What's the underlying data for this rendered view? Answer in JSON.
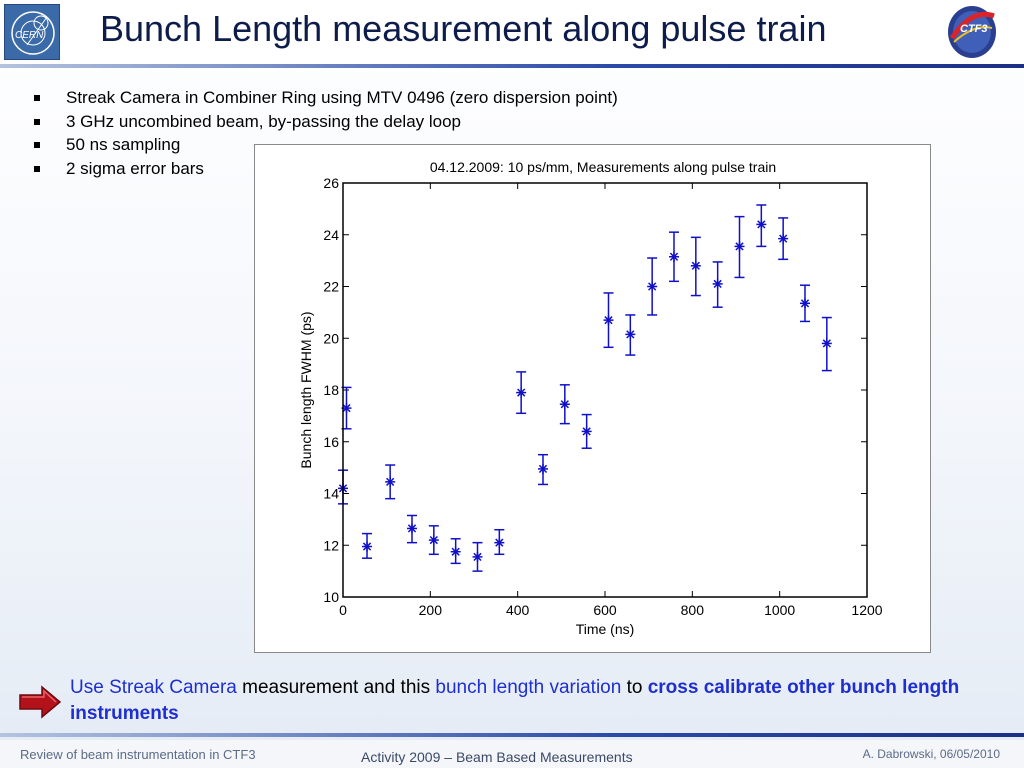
{
  "header": {
    "title": "Bunch Length measurement along pulse train",
    "left_logo_text": "CERN",
    "right_logo_text": "CTF3"
  },
  "bullets": [
    "Streak Camera in Combiner Ring using MTV 0496 (zero dispersion point)",
    "3 GHz uncombined beam, by-passing the delay loop",
    "50 ns sampling",
    "2 sigma error bars"
  ],
  "chart_data": {
    "type": "scatter",
    "title": "04.12.2009: 10 ps/mm, Measurements along pulse train",
    "xlabel": "Time (ns)",
    "ylabel": "Bunch length FWHM (ps)",
    "xlim": [
      0,
      1200
    ],
    "ylim": [
      10,
      26
    ],
    "xticks": [
      0,
      200,
      400,
      600,
      800,
      1000,
      1200
    ],
    "yticks": [
      10,
      12,
      14,
      16,
      18,
      20,
      22,
      24,
      26
    ],
    "grid": false,
    "marker": "asterisk",
    "color": "#1010c8",
    "error_bars": "2 sigma",
    "points": [
      {
        "x": 0,
        "y": 14.2,
        "low": 13.6,
        "high": 14.9
      },
      {
        "x": 8,
        "y": 17.3,
        "low": 16.5,
        "high": 18.1
      },
      {
        "x": 55,
        "y": 11.95,
        "low": 11.5,
        "high": 12.45
      },
      {
        "x": 108,
        "y": 14.45,
        "low": 13.8,
        "high": 15.1
      },
      {
        "x": 158,
        "y": 12.65,
        "low": 12.1,
        "high": 13.15
      },
      {
        "x": 208,
        "y": 12.2,
        "low": 11.65,
        "high": 12.75
      },
      {
        "x": 258,
        "y": 11.75,
        "low": 11.3,
        "high": 12.25
      },
      {
        "x": 308,
        "y": 11.55,
        "low": 11.0,
        "high": 12.1
      },
      {
        "x": 358,
        "y": 12.1,
        "low": 11.65,
        "high": 12.6
      },
      {
        "x": 408,
        "y": 17.9,
        "low": 17.1,
        "high": 18.7
      },
      {
        "x": 458,
        "y": 14.95,
        "low": 14.35,
        "high": 15.5
      },
      {
        "x": 508,
        "y": 17.45,
        "low": 16.7,
        "high": 18.2
      },
      {
        "x": 558,
        "y": 16.4,
        "low": 15.75,
        "high": 17.05
      },
      {
        "x": 608,
        "y": 20.7,
        "low": 19.65,
        "high": 21.75
      },
      {
        "x": 658,
        "y": 20.15,
        "low": 19.35,
        "high": 20.9
      },
      {
        "x": 708,
        "y": 22.0,
        "low": 20.9,
        "high": 23.1
      },
      {
        "x": 758,
        "y": 23.15,
        "low": 22.2,
        "high": 24.1
      },
      {
        "x": 808,
        "y": 22.8,
        "low": 21.65,
        "high": 23.9
      },
      {
        "x": 858,
        "y": 22.1,
        "low": 21.2,
        "high": 22.95
      },
      {
        "x": 908,
        "y": 23.55,
        "low": 22.35,
        "high": 24.7
      },
      {
        "x": 958,
        "y": 24.4,
        "low": 23.55,
        "high": 25.15
      },
      {
        "x": 1008,
        "y": 23.85,
        "low": 23.05,
        "high": 24.65
      },
      {
        "x": 1058,
        "y": 21.35,
        "low": 20.65,
        "high": 22.05
      },
      {
        "x": 1108,
        "y": 19.8,
        "low": 18.75,
        "high": 20.8
      }
    ]
  },
  "callout": {
    "part1": "Use Streak Camera",
    "part2": " measurement and this ",
    "part3": "bunch length variation",
    "part4": " to ",
    "part5": "cross calibrate other bunch length instruments"
  },
  "footer": {
    "left": "Review of beam instrumentation in CTF3",
    "center": "Activity 2009 – Beam Based Measurements",
    "right": "A. Dabrowski,  06/05/2010"
  },
  "colors": {
    "title": "#0d1c4a",
    "accent_blue": "#1f2fcf",
    "marker_blue": "#1010c8",
    "arrow_red": "#b3121b",
    "rule_dark": "#1c2f86"
  }
}
